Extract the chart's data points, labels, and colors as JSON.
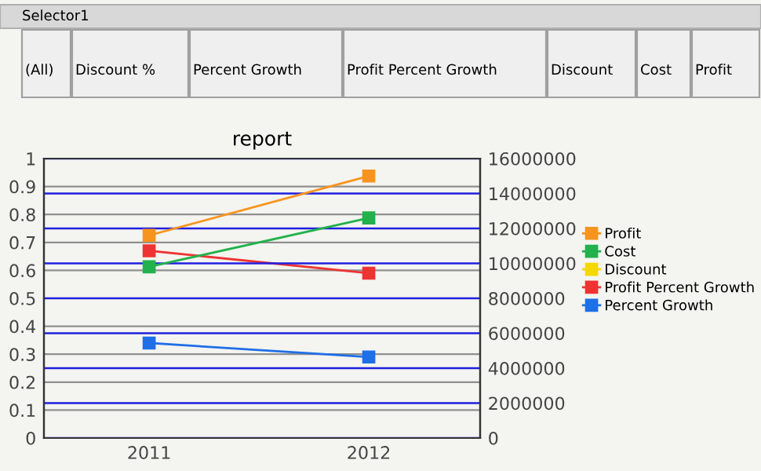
{
  "chart_data": {
    "type": "line",
    "title": "report",
    "annotations": [
      "Selector1",
      "(All)",
      "Discount %",
      "Percent Growth",
      "Profit Percent Growth",
      "Discount",
      "Cost",
      "Profit"
    ],
    "categories": [
      "2011",
      "2012"
    ],
    "series": [
      {
        "name": "Profit",
        "color": "#f7941d",
        "values": [
          11600000,
          15000000
        ],
        "axis": "y2"
      },
      {
        "name": "Cost",
        "color": "#22b14c",
        "values": [
          9800000,
          12600000
        ],
        "axis": "y2"
      },
      {
        "name": "Discount",
        "color": "#f5d800",
        "values": [
          null,
          null
        ],
        "axis": "y2"
      },
      {
        "name": "Profit Percent Growth",
        "color": "#ee3333",
        "values": [
          0.67,
          0.59
        ]
      },
      {
        "name": "Percent Growth",
        "color": "#1e6fe8",
        "values": [
          0.34,
          0.29
        ]
      }
    ],
    "ylim": [
      0,
      1
    ],
    "yticks": [
      0,
      0.1,
      0.2,
      0.3,
      0.4,
      0.5,
      0.6,
      0.7,
      0.8,
      0.9,
      1
    ],
    "y2lim": [
      0,
      16000000
    ],
    "y2ticks": [
      0,
      2000000,
      4000000,
      6000000,
      8000000,
      10000000,
      12000000,
      14000000,
      16000000
    ],
    "grid": true,
    "legend": "right",
    "marker": "square",
    "line_style": "solid"
  }
}
